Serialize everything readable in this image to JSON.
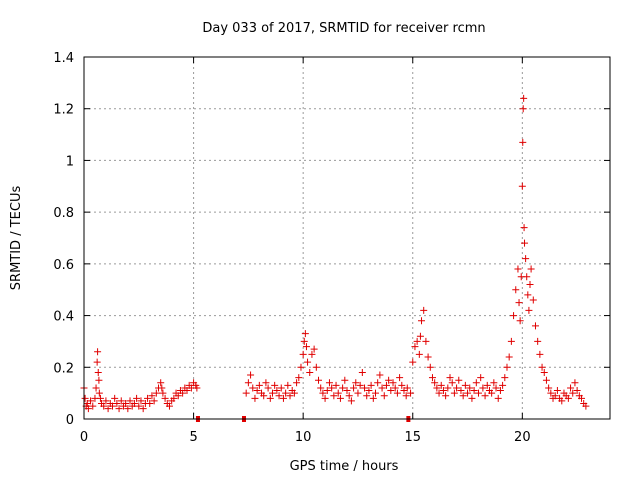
{
  "chart_data": {
    "type": "scatter",
    "marker": "+",
    "title": "Day 033 of 2017, SRMTID for receiver rcmn",
    "xlabel": "GPS time / hours",
    "ylabel": "SRMTID / TECUs",
    "xlim": [
      0,
      24
    ],
    "ylim": [
      0,
      1.4
    ],
    "x_ticks": [
      0,
      5,
      10,
      15,
      20
    ],
    "x_tick_labels": [
      "0",
      "5",
      "10",
      "15",
      "20"
    ],
    "y_ticks": [
      0,
      0.2,
      0.4,
      0.6,
      0.8,
      1.0,
      1.2,
      1.4
    ],
    "y_tick_labels": [
      "0",
      "0.2",
      "0.4",
      "0.6",
      "0.8",
      "1",
      "1.2",
      "1.4"
    ],
    "grid": true,
    "color": "#e00000",
    "series": [
      {
        "name": "SRMTID",
        "x": [
          0.0,
          0.05,
          0.1,
          0.15,
          0.2,
          0.3,
          0.4,
          0.5,
          0.55,
          0.6,
          0.62,
          0.65,
          0.68,
          0.7,
          0.75,
          0.8,
          0.9,
          1.0,
          1.1,
          1.2,
          1.3,
          1.4,
          1.5,
          1.6,
          1.7,
          1.8,
          1.9,
          2.0,
          2.1,
          2.2,
          2.3,
          2.4,
          2.5,
          2.6,
          2.7,
          2.8,
          2.9,
          3.0,
          3.1,
          3.2,
          3.3,
          3.4,
          3.5,
          3.55,
          3.6,
          3.7,
          3.8,
          3.9,
          4.0,
          4.1,
          4.2,
          4.3,
          4.4,
          4.5,
          4.6,
          4.7,
          4.8,
          4.9,
          5.0,
          5.1,
          5.15,
          7.4,
          7.5,
          7.6,
          7.7,
          7.8,
          7.9,
          8.0,
          8.1,
          8.2,
          8.3,
          8.4,
          8.5,
          8.6,
          8.7,
          8.8,
          8.9,
          9.0,
          9.1,
          9.2,
          9.3,
          9.4,
          9.5,
          9.6,
          9.7,
          9.8,
          9.9,
          10.0,
          10.05,
          10.1,
          10.15,
          10.2,
          10.3,
          10.4,
          10.5,
          10.6,
          10.7,
          10.8,
          10.9,
          11.0,
          11.1,
          11.2,
          11.3,
          11.4,
          11.5,
          11.6,
          11.7,
          11.8,
          11.9,
          12.0,
          12.1,
          12.2,
          12.3,
          12.4,
          12.5,
          12.6,
          12.7,
          12.8,
          12.9,
          13.0,
          13.1,
          13.2,
          13.3,
          13.4,
          13.5,
          13.6,
          13.7,
          13.8,
          13.9,
          14.0,
          14.1,
          14.2,
          14.3,
          14.4,
          14.5,
          14.6,
          14.7,
          14.75,
          14.9,
          15.0,
          15.1,
          15.2,
          15.3,
          15.35,
          15.4,
          15.5,
          15.6,
          15.7,
          15.8,
          15.9,
          16.0,
          16.1,
          16.2,
          16.3,
          16.4,
          16.5,
          16.6,
          16.7,
          16.8,
          16.9,
          17.0,
          17.1,
          17.2,
          17.3,
          17.4,
          17.5,
          17.6,
          17.7,
          17.8,
          17.9,
          18.0,
          18.1,
          18.2,
          18.3,
          18.4,
          18.5,
          18.6,
          18.7,
          18.8,
          18.9,
          19.0,
          19.1,
          19.2,
          19.3,
          19.4,
          19.5,
          19.6,
          19.7,
          19.8,
          19.85,
          19.9,
          19.95,
          20.0,
          20.02,
          20.04,
          20.06,
          20.08,
          20.1,
          20.15,
          20.2,
          20.25,
          20.3,
          20.35,
          20.4,
          20.5,
          20.6,
          20.7,
          20.8,
          20.9,
          21.0,
          21.1,
          21.2,
          21.3,
          21.4,
          21.5,
          21.6,
          21.7,
          21.8,
          21.9,
          22.0,
          22.1,
          22.2,
          22.3,
          22.4,
          22.5,
          22.6,
          22.7,
          22.8,
          22.9
        ],
        "y": [
          0.12,
          0.08,
          0.05,
          0.06,
          0.04,
          0.07,
          0.05,
          0.08,
          0.12,
          0.22,
          0.26,
          0.18,
          0.15,
          0.1,
          0.08,
          0.06,
          0.05,
          0.07,
          0.04,
          0.06,
          0.05,
          0.08,
          0.06,
          0.04,
          0.07,
          0.05,
          0.06,
          0.04,
          0.07,
          0.05,
          0.06,
          0.08,
          0.05,
          0.07,
          0.04,
          0.06,
          0.08,
          0.06,
          0.09,
          0.07,
          0.1,
          0.12,
          0.14,
          0.12,
          0.1,
          0.08,
          0.06,
          0.05,
          0.07,
          0.08,
          0.1,
          0.09,
          0.11,
          0.1,
          0.12,
          0.11,
          0.13,
          0.12,
          0.14,
          0.13,
          0.12,
          0.1,
          0.14,
          0.17,
          0.12,
          0.08,
          0.11,
          0.13,
          0.1,
          0.09,
          0.14,
          0.12,
          0.08,
          0.1,
          0.13,
          0.11,
          0.09,
          0.12,
          0.08,
          0.1,
          0.13,
          0.09,
          0.11,
          0.1,
          0.14,
          0.16,
          0.2,
          0.25,
          0.3,
          0.33,
          0.28,
          0.22,
          0.18,
          0.25,
          0.27,
          0.2,
          0.15,
          0.12,
          0.1,
          0.08,
          0.11,
          0.14,
          0.12,
          0.09,
          0.13,
          0.1,
          0.08,
          0.12,
          0.15,
          0.11,
          0.09,
          0.07,
          0.12,
          0.14,
          0.1,
          0.13,
          0.18,
          0.12,
          0.09,
          0.11,
          0.13,
          0.08,
          0.1,
          0.14,
          0.17,
          0.12,
          0.09,
          0.13,
          0.15,
          0.11,
          0.14,
          0.12,
          0.1,
          0.16,
          0.13,
          0.11,
          0.09,
          0.12,
          0.1,
          0.22,
          0.28,
          0.3,
          0.25,
          0.32,
          0.38,
          0.42,
          0.3,
          0.24,
          0.2,
          0.16,
          0.14,
          0.12,
          0.1,
          0.13,
          0.11,
          0.09,
          0.12,
          0.16,
          0.14,
          0.1,
          0.12,
          0.15,
          0.11,
          0.09,
          0.13,
          0.1,
          0.12,
          0.08,
          0.11,
          0.14,
          0.1,
          0.16,
          0.12,
          0.09,
          0.13,
          0.11,
          0.1,
          0.14,
          0.12,
          0.08,
          0.11,
          0.13,
          0.16,
          0.2,
          0.24,
          0.3,
          0.4,
          0.5,
          0.58,
          0.45,
          0.38,
          0.55,
          0.9,
          1.07,
          1.2,
          1.24,
          0.74,
          0.68,
          0.62,
          0.55,
          0.48,
          0.42,
          0.52,
          0.58,
          0.46,
          0.36,
          0.3,
          0.25,
          0.2,
          0.18,
          0.15,
          0.12,
          0.1,
          0.08,
          0.09,
          0.11,
          0.08,
          0.07,
          0.1,
          0.09,
          0.08,
          0.12,
          0.1,
          0.14,
          0.11,
          0.09,
          0.08,
          0.06,
          0.05
        ]
      }
    ],
    "gaps": [
      {
        "x": 5.2,
        "y": 0
      },
      {
        "x": 7.3,
        "y": 0
      },
      {
        "x": 14.8,
        "y": 0
      }
    ]
  }
}
